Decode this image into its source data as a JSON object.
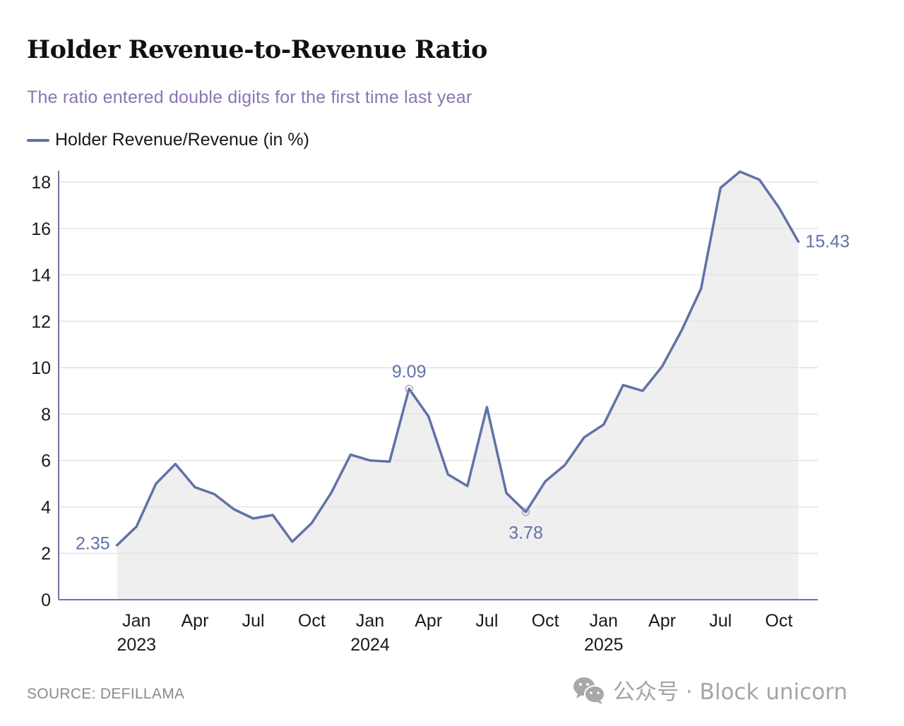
{
  "header": {
    "title": "Holder Revenue-to-Revenue Ratio",
    "subtitle": "The ratio entered double digits for the first time last year",
    "legend_label": "Holder Revenue/Revenue (in %)"
  },
  "footer": {
    "source": "SOURCE: DEFILLAMA",
    "watermark": "公众号 · Block unicorn",
    "watermark_icon": "wechat-icon"
  },
  "colors": {
    "line": "#6271a8",
    "area": "#efeff0",
    "axis": "#7b6fa0",
    "grid": "#e3e3e3",
    "subtitle": "#8b74b5"
  },
  "chart_data": {
    "type": "area",
    "title": "Holder Revenue-to-Revenue Ratio",
    "subtitle": "The ratio entered double digits for the first time last year",
    "xlabel": "",
    "ylabel": "",
    "legend": [
      {
        "name": "Holder Revenue/Revenue (in %)",
        "position": "top-left"
      }
    ],
    "grid": true,
    "ylim": [
      0,
      18.5
    ],
    "yticks": [
      0,
      2,
      4,
      6,
      8,
      10,
      12,
      14,
      16,
      18
    ],
    "xlim": [
      "2022-09",
      "2025-12"
    ],
    "xticks": [
      {
        "month": "2023-01",
        "label": "Jan",
        "year": "2023"
      },
      {
        "month": "2023-04",
        "label": "Apr",
        "year": ""
      },
      {
        "month": "2023-07",
        "label": "Jul",
        "year": ""
      },
      {
        "month": "2023-10",
        "label": "Oct",
        "year": ""
      },
      {
        "month": "2024-01",
        "label": "Jan",
        "year": "2024"
      },
      {
        "month": "2024-04",
        "label": "Apr",
        "year": ""
      },
      {
        "month": "2024-07",
        "label": "Jul",
        "year": ""
      },
      {
        "month": "2024-10",
        "label": "Oct",
        "year": ""
      },
      {
        "month": "2025-01",
        "label": "Jan",
        "year": "2025"
      },
      {
        "month": "2025-04",
        "label": "Apr",
        "year": ""
      },
      {
        "month": "2025-07",
        "label": "Jul",
        "year": ""
      },
      {
        "month": "2025-10",
        "label": "Oct",
        "year": ""
      }
    ],
    "series": [
      {
        "name": "Holder Revenue/Revenue (in %)",
        "x": [
          "2022-12",
          "2023-01",
          "2023-02",
          "2023-03",
          "2023-04",
          "2023-05",
          "2023-06",
          "2023-07",
          "2023-08",
          "2023-09",
          "2023-10",
          "2023-11",
          "2023-12",
          "2024-01",
          "2024-02",
          "2024-03",
          "2024-04",
          "2024-05",
          "2024-06",
          "2024-07",
          "2024-08",
          "2024-09",
          "2024-10",
          "2024-11",
          "2024-12",
          "2025-01",
          "2025-02",
          "2025-03",
          "2025-04",
          "2025-05",
          "2025-06",
          "2025-07",
          "2025-08",
          "2025-09",
          "2025-10",
          "2025-11"
        ],
        "values": [
          2.35,
          3.15,
          5.0,
          5.85,
          4.85,
          4.55,
          3.9,
          3.5,
          3.65,
          2.5,
          3.3,
          4.6,
          6.25,
          6.0,
          5.95,
          9.09,
          7.9,
          5.4,
          4.9,
          8.3,
          4.6,
          3.78,
          5.1,
          5.8,
          7.0,
          7.55,
          9.25,
          9.0,
          10.05,
          11.6,
          13.4,
          17.75,
          18.45,
          18.1,
          16.9,
          15.43
        ]
      }
    ],
    "annotations": [
      {
        "month": "2022-12",
        "value": 2.35,
        "text": "2.35",
        "position": "left",
        "marker": false
      },
      {
        "month": "2024-03",
        "value": 9.09,
        "text": "9.09",
        "position": "above",
        "marker": true
      },
      {
        "month": "2024-09",
        "value": 3.78,
        "text": "3.78",
        "position": "below",
        "marker": true
      },
      {
        "month": "2025-11",
        "value": 15.43,
        "text": "15.43",
        "position": "right",
        "marker": false
      }
    ]
  }
}
